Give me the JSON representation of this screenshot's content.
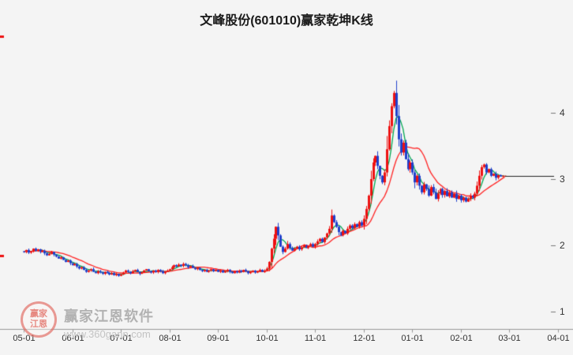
{
  "title": "文峰股份(601010)赢家乾坤K线",
  "watermark": {
    "logo_top": "赢家",
    "logo_bottom": "江恩",
    "line1": "赢家江恩软件",
    "line2": "www.360gann.com"
  },
  "chart_data": {
    "type": "candlestick",
    "title": "文峰股份(601010)赢家乾坤K线",
    "x_tick_labels": [
      "05-01",
      "06-01",
      "07-01",
      "08-01",
      "09-01",
      "10-01",
      "11-01",
      "12-01",
      "01-01",
      "02-01",
      "03-01",
      "04-01"
    ],
    "days_per_month": 21,
    "y_ticks": [
      1,
      2,
      3,
      4
    ],
    "ylim": [
      0.75,
      5.2
    ],
    "closes": [
      1.9,
      1.93,
      1.89,
      1.91,
      1.95,
      1.92,
      1.94,
      1.9,
      1.92,
      1.88,
      1.85,
      1.87,
      1.9,
      1.86,
      1.83,
      1.8,
      1.82,
      1.78,
      1.75,
      1.77,
      1.73,
      1.7,
      1.72,
      1.68,
      1.65,
      1.67,
      1.63,
      1.6,
      1.62,
      1.64,
      1.6,
      1.58,
      1.61,
      1.59,
      1.57,
      1.6,
      1.58,
      1.56,
      1.58,
      1.55,
      1.57,
      1.54,
      1.56,
      1.59,
      1.62,
      1.6,
      1.58,
      1.61,
      1.63,
      1.6,
      1.57,
      1.59,
      1.62,
      1.64,
      1.61,
      1.59,
      1.62,
      1.6,
      1.63,
      1.61,
      1.58,
      1.6,
      1.62,
      1.64,
      1.67,
      1.7,
      1.68,
      1.71,
      1.69,
      1.72,
      1.7,
      1.67,
      1.69,
      1.66,
      1.64,
      1.66,
      1.63,
      1.61,
      1.63,
      1.6,
      1.62,
      1.64,
      1.61,
      1.63,
      1.6,
      1.62,
      1.59,
      1.61,
      1.63,
      1.6,
      1.58,
      1.61,
      1.59,
      1.62,
      1.6,
      1.63,
      1.61,
      1.58,
      1.6,
      1.62,
      1.59,
      1.61,
      1.63,
      1.6,
      1.62,
      1.65,
      1.75,
      1.95,
      2.1,
      2.28,
      2.15,
      1.98,
      1.9,
      1.95,
      2.02,
      1.96,
      1.92,
      1.95,
      1.98,
      1.94,
      1.97,
      2.0,
      1.96,
      1.99,
      2.02,
      1.98,
      2.02,
      2.06,
      2.1,
      2.05,
      2.12,
      2.18,
      2.25,
      2.45,
      2.35,
      2.28,
      2.2,
      2.15,
      2.22,
      2.18,
      2.25,
      2.3,
      2.26,
      2.32,
      2.28,
      2.35,
      2.3,
      2.4,
      2.55,
      2.75,
      3.0,
      3.25,
      3.35,
      3.2,
      3.05,
      2.95,
      3.1,
      3.45,
      3.8,
      4.1,
      4.3,
      3.95,
      3.6,
      3.4,
      3.55,
      3.3,
      3.15,
      3.25,
      3.1,
      2.95,
      3.05,
      2.9,
      2.8,
      2.92,
      2.85,
      2.75,
      2.88,
      2.8,
      2.7,
      2.78,
      2.85,
      2.76,
      2.82,
      2.74,
      2.8,
      2.72,
      2.78,
      2.7,
      2.75,
      2.68,
      2.72,
      2.66,
      2.7,
      2.75,
      2.72,
      2.78,
      2.9,
      3.05,
      3.18,
      3.22,
      3.1,
      3.15,
      3.05,
      3.08,
      3.02,
      3.06,
      3.04,
      3.05,
      3.05
    ],
    "moving_averages": [
      {
        "name": "MA5",
        "window": 5,
        "color": "#00a651"
      },
      {
        "name": "MA15",
        "window": 15,
        "color": "#ff2222"
      }
    ],
    "last_price": 3.05,
    "last_price_line_color": "#222222",
    "up_color": "#ee1111",
    "down_color": "#2040cc",
    "axis_color": "#999999",
    "label_color": "#333333",
    "left_markers": [
      {
        "price": 5.15
      },
      {
        "price": 1.85
      }
    ],
    "legend_position": "none",
    "grid": false
  }
}
